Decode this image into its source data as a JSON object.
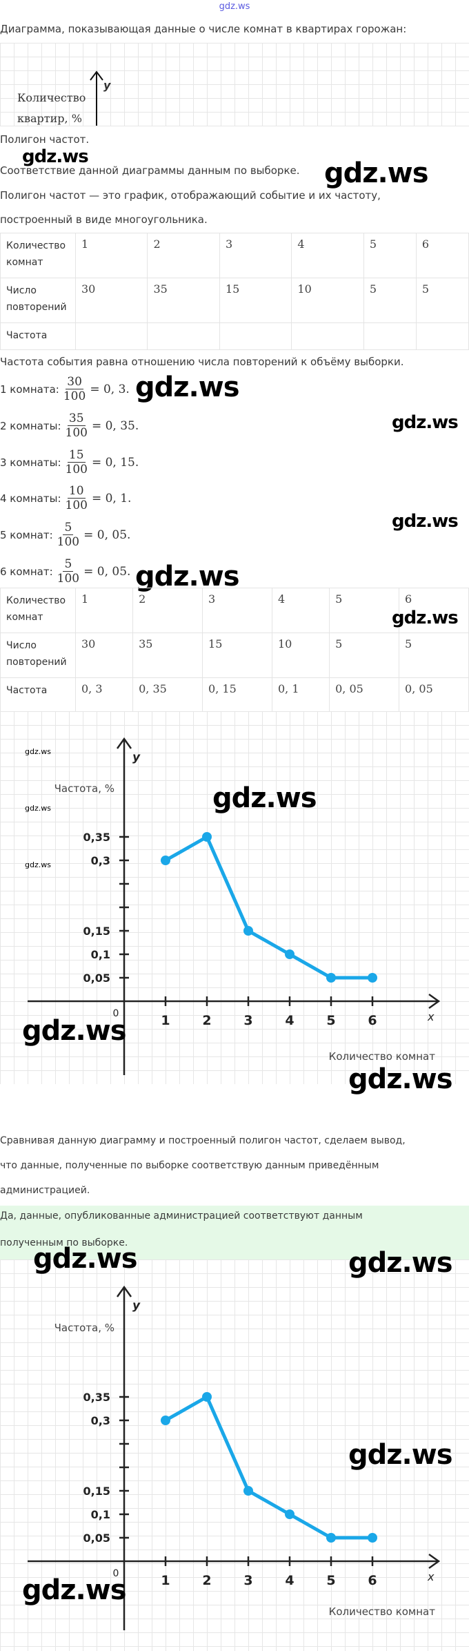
{
  "header": {
    "logo": "gdz.ws"
  },
  "intro": "Диаграмма, показывающая данные о числе комнат в квартирах горожан:",
  "diagram": {
    "y_axis_letter": "y",
    "y_label_line1": "Количество",
    "y_label_line2": "квартир, %"
  },
  "p_polygon": "Полигон частот.",
  "p_correspond": "Соответствие данной диаграммы данным по выборке.",
  "p_def1": "Полигон частот — это график, отображающий событие и их частоту,",
  "p_def2": "построенный в виде многоугольника.",
  "table1": {
    "rows": [
      {
        "label1": "Количество",
        "label2": "комнат",
        "values": [
          "1",
          "2",
          "3",
          "4",
          "5",
          "6"
        ]
      },
      {
        "label1": "Число",
        "label2": "повторений",
        "values": [
          "30",
          "35",
          "15",
          "10",
          "5",
          "5"
        ]
      },
      {
        "label1": "Частота",
        "label2": "",
        "values": [
          "",
          "",
          "",
          "",
          "",
          ""
        ]
      }
    ]
  },
  "freq_intro": "Частота события равна отношению числа повторений к объёму выборки.",
  "fractions": [
    {
      "label": "1 комната:",
      "num": "30",
      "den": "100",
      "result": "= 0, 3."
    },
    {
      "label": "2 комнаты:",
      "num": "35",
      "den": "100",
      "result": "= 0, 35."
    },
    {
      "label": "3 комнаты:",
      "num": "15",
      "den": "100",
      "result": "= 0, 15."
    },
    {
      "label": "4 комнаты:",
      "num": "10",
      "den": "100",
      "result": "= 0, 1."
    },
    {
      "label": "5 комнат:",
      "num": "5",
      "den": "100",
      "result": "= 0, 05."
    },
    {
      "label": "6 комнат:",
      "num": "5",
      "den": "100",
      "result": "= 0, 05."
    }
  ],
  "table2": {
    "rows": [
      {
        "label1": "Количество",
        "label2": "комнат",
        "values": [
          "1",
          "2",
          "3",
          "4",
          "5",
          "6"
        ]
      },
      {
        "label1": "Число",
        "label2": "повторений",
        "values": [
          "30",
          "35",
          "15",
          "10",
          "5",
          "5"
        ]
      },
      {
        "label1": "Частота",
        "label2": "",
        "values": [
          "0, 3",
          "0, 35",
          "0, 15",
          "0, 1",
          "0, 05",
          "0, 05"
        ]
      }
    ]
  },
  "conclusion": {
    "line1": "Сравнивая данную диаграмму и построенный полигон частот, сделаем вывод,",
    "line2": "что данные, полученные по выборке соответствую данным приведённым",
    "line3": "администрацией."
  },
  "answer": {
    "line1": "Да, данные, опубликованные администрацией соответствуют данным",
    "line2": "полученным по выборке."
  },
  "watermark": "gdz.ws",
  "colors": {
    "line": "#1aa7e8",
    "answer_bg": "#e5f9e7"
  },
  "chart_data": [
    {
      "type": "line",
      "title": "",
      "ylabel": "Частота, %",
      "xlabel": "Количество комнат",
      "x_axis_letter": "x",
      "y_axis_letter": "y",
      "origin_label": "0",
      "x": [
        1,
        2,
        3,
        4,
        5,
        6
      ],
      "y": [
        0.3,
        0.35,
        0.15,
        0.1,
        0.05,
        0.05
      ],
      "x_tick_labels": [
        "1",
        "2",
        "3",
        "4",
        "5",
        "6"
      ],
      "y_ticks": [
        0.05,
        0.1,
        0.15,
        0.2,
        0.25,
        0.3,
        0.35
      ],
      "y_tick_labels": [
        "0,05",
        "0,1",
        "0,15",
        "",
        "",
        "0,3",
        "0,35"
      ],
      "xlim": [
        0,
        6.5
      ],
      "ylim": [
        0,
        0.45
      ],
      "grid": true
    },
    {
      "type": "line",
      "title": "",
      "ylabel": "Частота, %",
      "xlabel": "Количество комнат",
      "x_axis_letter": "x",
      "y_axis_letter": "y",
      "origin_label": "0",
      "x": [
        1,
        2,
        3,
        4,
        5,
        6
      ],
      "y": [
        0.3,
        0.35,
        0.15,
        0.1,
        0.05,
        0.05
      ],
      "x_tick_labels": [
        "1",
        "2",
        "3",
        "4",
        "5",
        "6"
      ],
      "y_ticks": [
        0.05,
        0.1,
        0.15,
        0.2,
        0.25,
        0.3,
        0.35
      ],
      "y_tick_labels": [
        "0,05",
        "0,1",
        "0,15",
        "",
        "",
        "0,3",
        "0,35"
      ],
      "xlim": [
        0,
        6.5
      ],
      "ylim": [
        0,
        0.45
      ],
      "grid": true
    }
  ]
}
